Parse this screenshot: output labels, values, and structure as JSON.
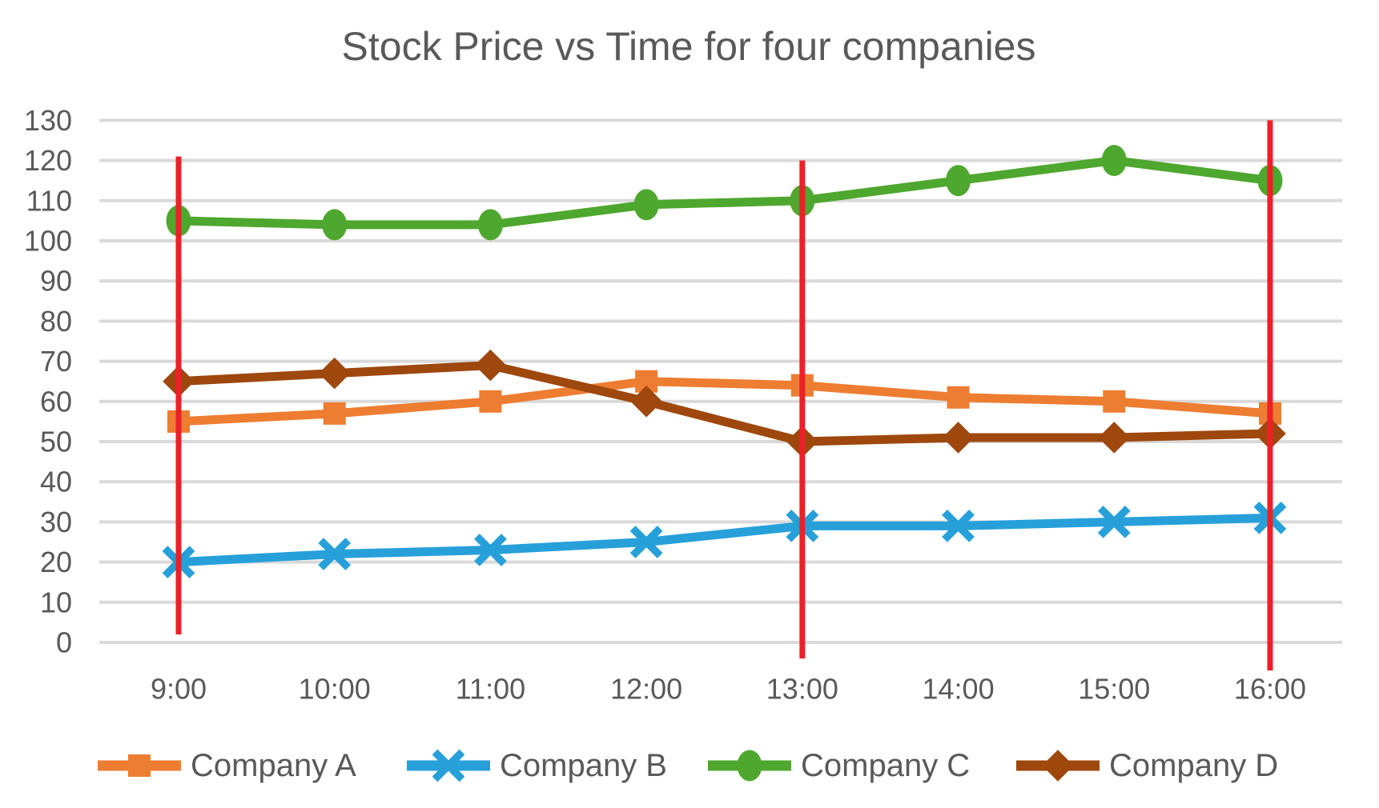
{
  "chart_data": {
    "type": "line",
    "title": "Stock Price vs Time for four companies",
    "categories": [
      "9:00",
      "10:00",
      "11:00",
      "12:00",
      "13:00",
      "14:00",
      "15:00",
      "16:00"
    ],
    "series": [
      {
        "name": "Company A",
        "color": "#ED7D31",
        "marker": "square",
        "values": [
          55,
          57,
          60,
          65,
          64,
          61,
          60,
          57
        ]
      },
      {
        "name": "Company B",
        "color": "#27A0DA",
        "marker": "x",
        "values": [
          20,
          22,
          23,
          25,
          29,
          29,
          30,
          31
        ]
      },
      {
        "name": "Company C",
        "color": "#4EA72E",
        "marker": "circle",
        "values": [
          105,
          104,
          104,
          109,
          110,
          115,
          120,
          115
        ]
      },
      {
        "name": "Company D",
        "color": "#9E480E",
        "marker": "diamond",
        "values": [
          65,
          67,
          69,
          60,
          50,
          51,
          51,
          52
        ]
      }
    ],
    "xlabel": "",
    "ylabel": "",
    "ylim": [
      0,
      130
    ],
    "ytick_step": 10,
    "grid": true,
    "legend_position": "bottom",
    "annotations": [
      {
        "type": "vline",
        "at": "9:00",
        "from_value": 2,
        "to_value": 121
      },
      {
        "type": "vline",
        "at": "13:00",
        "from_value": -4,
        "to_value": 120
      },
      {
        "type": "vline",
        "at": "16:00",
        "from_value": -7,
        "to_value": 130
      }
    ],
    "colors": {
      "annotation_line": "#EC2028",
      "gridline": "#D9D9D9",
      "text": "#595959",
      "background": "#FFFFFF"
    }
  }
}
